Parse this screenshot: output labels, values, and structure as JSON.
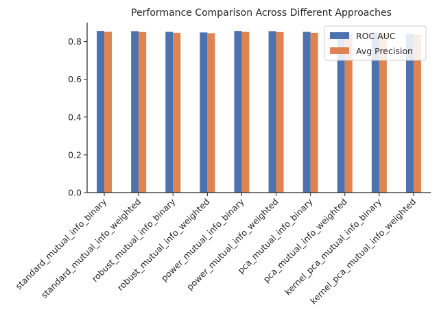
{
  "chart_data": {
    "type": "bar",
    "title": "Performance Comparison Across Different Approaches",
    "xlabel": "",
    "ylabel": "",
    "ylim": [
      0,
      0.9
    ],
    "yticks": [
      0.0,
      0.2,
      0.4,
      0.6,
      0.8
    ],
    "ytick_labels": [
      "0.0",
      "0.2",
      "0.4",
      "0.6",
      "0.8"
    ],
    "legend_position": "top-right",
    "grid": false,
    "categories": [
      "standard_mutual_info_binary",
      "standard_mutual_info_weighted",
      "robust_mutual_info_binary",
      "robust_mutual_info_weighted",
      "power_mutual_info_binary",
      "power_mutual_info_weighted",
      "pca_mutual_info_binary",
      "pca_mutual_info_weighted",
      "kernel_pca_mutual_info_binary",
      "kernel_pca_mutual_info_weighted"
    ],
    "series": [
      {
        "name": "ROC AUC",
        "color": "#4c72b0",
        "values": [
          0.856,
          0.855,
          0.851,
          0.848,
          0.856,
          0.855,
          0.851,
          0.845,
          0.848,
          0.84
        ]
      },
      {
        "name": "Avg Precision",
        "color": "#dd8452",
        "values": [
          0.851,
          0.85,
          0.846,
          0.844,
          0.851,
          0.85,
          0.846,
          0.842,
          0.844,
          0.836
        ]
      }
    ]
  }
}
